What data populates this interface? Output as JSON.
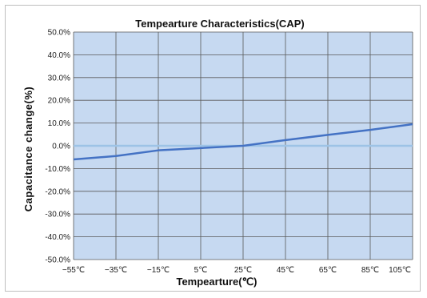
{
  "chart_data": {
    "type": "line",
    "title": "Tempearture Characteristics(CAP)",
    "xlabel": "Tempearture(℃)",
    "ylabel": "Capacitance change(%)",
    "categories": [
      "−55℃",
      "−35℃",
      "−15℃",
      "5℃",
      "25℃",
      "45℃",
      "65℃",
      "85℃",
      "105℃"
    ],
    "y_tick_labels": [
      "50.0%",
      "40.0%",
      "30.0%",
      "20.0%",
      "10.0%",
      "0.0%",
      "-10.0%",
      "-20.0%",
      "-30.0%",
      "-40.0%",
      "-50.0%"
    ],
    "series": [
      {
        "values": [
          -6.0,
          -4.5,
          -2.0,
          -1.0,
          0.0,
          2.5,
          4.8,
          7.0,
          9.5
        ]
      }
    ],
    "reference_line_y": 0,
    "ylim": [
      -50,
      50
    ],
    "grid": true,
    "colors": {
      "plot_bg": "#c6d9f1",
      "grid": "#595959",
      "series": "#4472c4",
      "zero_line": "#9dc3e6"
    }
  }
}
